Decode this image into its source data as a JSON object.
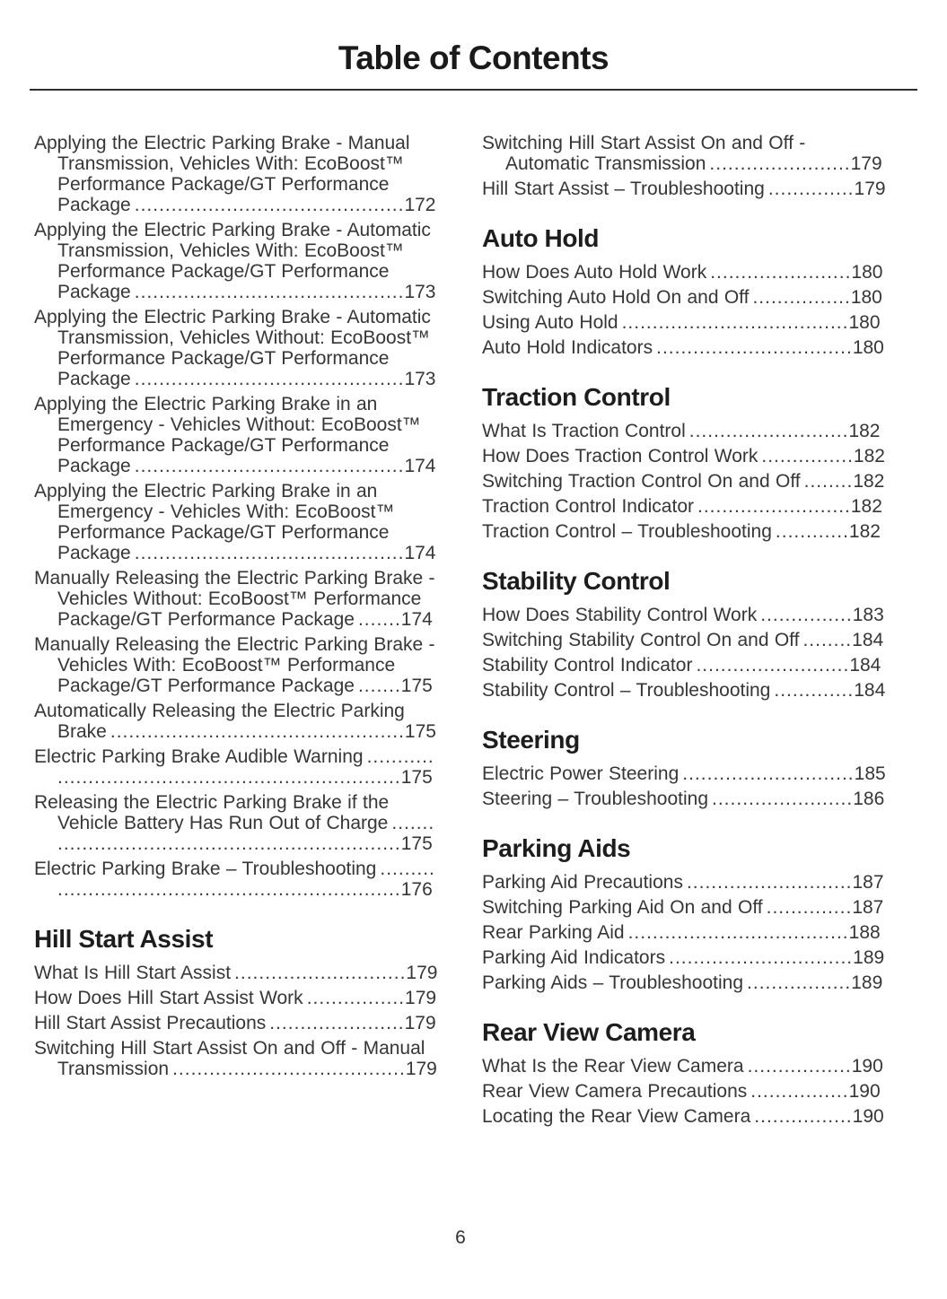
{
  "page": {
    "title": "Table of Contents",
    "page_number": "6"
  },
  "colors": {
    "body_text": "#363636",
    "heading_text": "#1d1d1d",
    "rule": "#2e2e2e",
    "background": "#ffffff"
  },
  "columns": [
    {
      "sections": [
        {
          "heading": "",
          "items": [
            {
              "label": "Applying the Electric Parking Brake - Manual Transmission, Vehicles With: EcoBoost™ Performance Package/GT Performance Package",
              "page": "172"
            },
            {
              "label": "Applying the Electric Parking Brake - Automatic Transmission, Vehicles With: EcoBoost™ Performance Package/GT Performance Package",
              "page": "173"
            },
            {
              "label": "Applying the Electric Parking Brake - Automatic Transmission, Vehicles Without: EcoBoost™ Performance Package/GT Performance Package",
              "page": "173"
            },
            {
              "label": "Applying the Electric Parking Brake in an Emergency - Vehicles Without: EcoBoost™ Performance Package/GT Performance Package",
              "page": "174"
            },
            {
              "label": "Applying the Electric Parking Brake in an Emergency - Vehicles With: EcoBoost™ Performance Package/GT Performance Package",
              "page": "174"
            },
            {
              "label": "Manually Releasing the Electric Parking Brake - Vehicles Without: EcoBoost™ Performance Package/GT Performance Package",
              "page": "174"
            },
            {
              "label": "Manually Releasing the Electric Parking Brake - Vehicles With: EcoBoost™ Performance Package/GT Performance Package",
              "page": "175"
            },
            {
              "label": "Automatically Releasing the Electric Parking Brake",
              "page": "175"
            },
            {
              "label": "Electric Parking Brake Audible Warning",
              "page": "175"
            },
            {
              "label": "Releasing the Electric Parking Brake if the Vehicle Battery Has Run Out of Charge",
              "page": "175"
            },
            {
              "label": "Electric Parking Brake – Troubleshooting",
              "page": "176"
            }
          ]
        },
        {
          "heading": "Hill Start Assist",
          "items": [
            {
              "label": "What Is Hill Start Assist",
              "page": "179"
            },
            {
              "label": "How Does Hill Start Assist Work",
              "page": "179"
            },
            {
              "label": "Hill Start Assist Precautions",
              "page": "179"
            },
            {
              "label": "Switching Hill Start Assist On and Off - Manual Transmission",
              "page": "179"
            }
          ]
        }
      ]
    },
    {
      "sections": [
        {
          "heading": "",
          "items": [
            {
              "label": "Switching Hill Start Assist On and Off - Automatic Transmission",
              "page": "179"
            },
            {
              "label": "Hill Start Assist – Troubleshooting",
              "page": "179"
            }
          ]
        },
        {
          "heading": "Auto Hold",
          "items": [
            {
              "label": "How Does Auto Hold Work",
              "page": "180"
            },
            {
              "label": "Switching Auto Hold On and Off",
              "page": "180"
            },
            {
              "label": "Using Auto Hold",
              "page": "180"
            },
            {
              "label": "Auto Hold Indicators",
              "page": "180"
            }
          ]
        },
        {
          "heading": "Traction Control",
          "items": [
            {
              "label": "What Is Traction Control",
              "page": "182"
            },
            {
              "label": "How Does Traction Control Work",
              "page": "182"
            },
            {
              "label": "Switching Traction Control On and Off",
              "page": "182"
            },
            {
              "label": "Traction Control Indicator",
              "page": "182"
            },
            {
              "label": "Traction Control – Troubleshooting",
              "page": "182"
            }
          ]
        },
        {
          "heading": "Stability Control",
          "items": [
            {
              "label": "How Does Stability Control Work",
              "page": "183"
            },
            {
              "label": "Switching Stability Control On and Off",
              "page": "184"
            },
            {
              "label": "Stability Control Indicator",
              "page": "184"
            },
            {
              "label": "Stability Control – Troubleshooting",
              "page": "184"
            }
          ]
        },
        {
          "heading": "Steering",
          "items": [
            {
              "label": "Electric Power Steering",
              "page": "185"
            },
            {
              "label": "Steering – Troubleshooting",
              "page": "186"
            }
          ]
        },
        {
          "heading": "Parking Aids",
          "items": [
            {
              "label": "Parking Aid Precautions",
              "page": "187"
            },
            {
              "label": "Switching Parking Aid On and Off",
              "page": "187"
            },
            {
              "label": "Rear Parking Aid",
              "page": "188"
            },
            {
              "label": "Parking Aid Indicators",
              "page": "189"
            },
            {
              "label": "Parking Aids – Troubleshooting",
              "page": "189"
            }
          ]
        },
        {
          "heading": "Rear View Camera",
          "items": [
            {
              "label": "What Is the Rear View Camera",
              "page": "190"
            },
            {
              "label": "Rear View Camera Precautions",
              "page": "190"
            },
            {
              "label": "Locating the Rear View Camera",
              "page": "190"
            }
          ]
        }
      ]
    }
  ]
}
